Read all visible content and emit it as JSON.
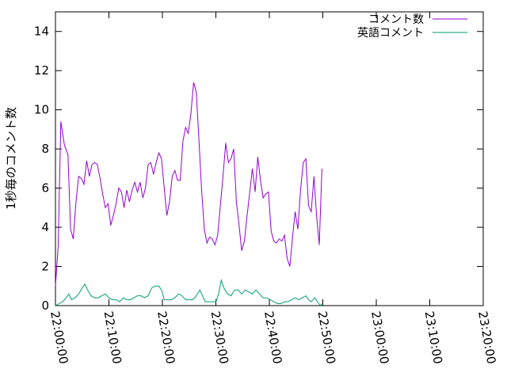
{
  "chart_data": {
    "type": "line",
    "title": "",
    "xlabel": "",
    "ylabel": "1秒毎のコメント数",
    "xlim": [
      "22:00:00",
      "23:20:00"
    ],
    "ylim": [
      0,
      15
    ],
    "grid": false,
    "legend": "top-right",
    "x_ticks": [
      "22:00:00",
      "22:10:00",
      "22:20:00",
      "22:30:00",
      "22:40:00",
      "22:50:00",
      "23:00:00",
      "23:10:00",
      "23:20:00"
    ],
    "y_ticks": [
      0,
      2,
      4,
      6,
      8,
      10,
      12,
      14
    ],
    "series": [
      {
        "name": "コメント数",
        "color": "#9400d3",
        "points": [
          [
            "22:00:00",
            1.0
          ],
          [
            "22:00:30",
            3.0
          ],
          [
            "22:01:00",
            9.4
          ],
          [
            "22:01:40",
            8.2
          ],
          [
            "22:02:20",
            7.7
          ],
          [
            "22:02:50",
            3.9
          ],
          [
            "22:03:20",
            3.4
          ],
          [
            "22:03:50",
            5.3
          ],
          [
            "22:04:20",
            6.6
          ],
          [
            "22:04:50",
            6.5
          ],
          [
            "22:05:20",
            6.2
          ],
          [
            "22:05:50",
            7.4
          ],
          [
            "22:06:20",
            6.6
          ],
          [
            "22:06:50",
            7.2
          ],
          [
            "22:07:20",
            7.3
          ],
          [
            "22:07:50",
            7.2
          ],
          [
            "22:08:20",
            6.5
          ],
          [
            "22:08:50",
            5.7
          ],
          [
            "22:09:20",
            5.0
          ],
          [
            "22:09:50",
            5.2
          ],
          [
            "22:10:20",
            4.1
          ],
          [
            "22:10:50",
            4.6
          ],
          [
            "22:11:20",
            5.2
          ],
          [
            "22:11:50",
            6.0
          ],
          [
            "22:12:20",
            5.8
          ],
          [
            "22:12:50",
            5.0
          ],
          [
            "22:13:20",
            5.9
          ],
          [
            "22:13:50",
            5.3
          ],
          [
            "22:14:20",
            5.9
          ],
          [
            "22:14:50",
            6.3
          ],
          [
            "22:15:20",
            5.8
          ],
          [
            "22:15:50",
            6.3
          ],
          [
            "22:16:20",
            5.5
          ],
          [
            "22:16:50",
            6.0
          ],
          [
            "22:17:20",
            7.2
          ],
          [
            "22:17:50",
            7.3
          ],
          [
            "22:18:20",
            6.7
          ],
          [
            "22:18:50",
            7.3
          ],
          [
            "22:19:20",
            7.8
          ],
          [
            "22:19:50",
            7.5
          ],
          [
            "22:20:20",
            6.0
          ],
          [
            "22:20:50",
            4.6
          ],
          [
            "22:21:20",
            5.3
          ],
          [
            "22:21:50",
            6.6
          ],
          [
            "22:22:20",
            6.9
          ],
          [
            "22:22:50",
            6.4
          ],
          [
            "22:23:20",
            6.4
          ],
          [
            "22:23:50",
            8.4
          ],
          [
            "22:24:20",
            9.1
          ],
          [
            "22:24:50",
            8.8
          ],
          [
            "22:25:20",
            9.8
          ],
          [
            "22:25:50",
            11.4
          ],
          [
            "22:26:20",
            10.9
          ],
          [
            "22:26:50",
            8.5
          ],
          [
            "22:27:20",
            5.9
          ],
          [
            "22:27:50",
            3.9
          ],
          [
            "22:28:20",
            3.2
          ],
          [
            "22:28:50",
            3.5
          ],
          [
            "22:29:20",
            3.4
          ],
          [
            "22:29:50",
            3.1
          ],
          [
            "22:30:20",
            3.6
          ],
          [
            "22:30:50",
            5.1
          ],
          [
            "22:31:20",
            6.6
          ],
          [
            "22:31:50",
            8.3
          ],
          [
            "22:32:20",
            7.3
          ],
          [
            "22:32:50",
            7.5
          ],
          [
            "22:33:20",
            8.0
          ],
          [
            "22:33:50",
            5.3
          ],
          [
            "22:34:20",
            4.1
          ],
          [
            "22:34:50",
            2.8
          ],
          [
            "22:35:20",
            3.3
          ],
          [
            "22:35:50",
            4.6
          ],
          [
            "22:36:20",
            5.8
          ],
          [
            "22:36:50",
            7.0
          ],
          [
            "22:37:20",
            5.8
          ],
          [
            "22:37:50",
            7.6
          ],
          [
            "22:38:20",
            6.4
          ],
          [
            "22:38:50",
            5.5
          ],
          [
            "22:39:20",
            5.7
          ],
          [
            "22:39:50",
            5.8
          ],
          [
            "22:40:20",
            3.8
          ],
          [
            "22:40:50",
            3.3
          ],
          [
            "22:41:20",
            3.2
          ],
          [
            "22:41:50",
            3.4
          ],
          [
            "22:42:20",
            3.3
          ],
          [
            "22:42:50",
            3.6
          ],
          [
            "22:43:20",
            2.4
          ],
          [
            "22:43:50",
            2.0
          ],
          [
            "22:44:20",
            3.5
          ],
          [
            "22:44:50",
            4.8
          ],
          [
            "22:45:20",
            3.9
          ],
          [
            "22:45:50",
            5.9
          ],
          [
            "22:46:20",
            7.3
          ],
          [
            "22:46:50",
            7.5
          ],
          [
            "22:47:20",
            5.1
          ],
          [
            "22:47:50",
            4.8
          ],
          [
            "22:48:20",
            6.6
          ],
          [
            "22:48:50",
            4.6
          ],
          [
            "22:49:20",
            3.1
          ],
          [
            "22:49:50",
            7.0
          ]
        ]
      },
      {
        "name": "英語コメント",
        "color": "#009e73",
        "points": [
          [
            "22:00:00",
            0.0
          ],
          [
            "22:00:40",
            0.1
          ],
          [
            "22:01:20",
            0.2
          ],
          [
            "22:02:00",
            0.4
          ],
          [
            "22:02:30",
            0.6
          ],
          [
            "22:03:00",
            0.3
          ],
          [
            "22:03:40",
            0.4
          ],
          [
            "22:04:20",
            0.6
          ],
          [
            "22:05:00",
            0.9
          ],
          [
            "22:05:30",
            1.1
          ],
          [
            "22:06:00",
            0.8
          ],
          [
            "22:06:40",
            0.5
          ],
          [
            "22:07:20",
            0.4
          ],
          [
            "22:08:00",
            0.4
          ],
          [
            "22:08:40",
            0.5
          ],
          [
            "22:09:20",
            0.6
          ],
          [
            "22:10:00",
            0.4
          ],
          [
            "22:10:40",
            0.3
          ],
          [
            "22:11:20",
            0.3
          ],
          [
            "22:12:00",
            0.2
          ],
          [
            "22:12:40",
            0.4
          ],
          [
            "22:13:20",
            0.3
          ],
          [
            "22:14:00",
            0.3
          ],
          [
            "22:14:40",
            0.4
          ],
          [
            "22:15:20",
            0.5
          ],
          [
            "22:16:00",
            0.5
          ],
          [
            "22:16:40",
            0.4
          ],
          [
            "22:17:20",
            0.5
          ],
          [
            "22:18:00",
            0.9
          ],
          [
            "22:18:40",
            1.0
          ],
          [
            "22:19:20",
            1.0
          ],
          [
            "22:19:50",
            0.8
          ],
          [
            "22:20:20",
            0.3
          ],
          [
            "22:21:00",
            0.3
          ],
          [
            "22:21:40",
            0.3
          ],
          [
            "22:22:20",
            0.4
          ],
          [
            "22:23:00",
            0.6
          ],
          [
            "22:23:40",
            0.5
          ],
          [
            "22:24:20",
            0.3
          ],
          [
            "22:25:00",
            0.3
          ],
          [
            "22:25:40",
            0.3
          ],
          [
            "22:26:20",
            0.5
          ],
          [
            "22:27:00",
            0.8
          ],
          [
            "22:27:30",
            0.5
          ],
          [
            "22:28:00",
            0.2
          ],
          [
            "22:28:40",
            0.2
          ],
          [
            "22:29:20",
            0.2
          ],
          [
            "22:30:00",
            0.2
          ],
          [
            "22:30:30",
            0.6
          ],
          [
            "22:31:00",
            1.3
          ],
          [
            "22:31:30",
            0.9
          ],
          [
            "22:32:10",
            0.6
          ],
          [
            "22:32:50",
            0.5
          ],
          [
            "22:33:30",
            0.8
          ],
          [
            "22:34:10",
            0.8
          ],
          [
            "22:34:50",
            0.6
          ],
          [
            "22:35:30",
            0.8
          ],
          [
            "22:36:10",
            0.7
          ],
          [
            "22:36:50",
            0.6
          ],
          [
            "22:37:30",
            0.8
          ],
          [
            "22:38:10",
            0.6
          ],
          [
            "22:38:50",
            0.4
          ],
          [
            "22:39:30",
            0.4
          ],
          [
            "22:40:10",
            0.3
          ],
          [
            "22:40:50",
            0.2
          ],
          [
            "22:41:30",
            0.1
          ],
          [
            "22:42:10",
            0.1
          ],
          [
            "22:42:50",
            0.2
          ],
          [
            "22:43:30",
            0.2
          ],
          [
            "22:44:10",
            0.3
          ],
          [
            "22:44:50",
            0.4
          ],
          [
            "22:45:30",
            0.3
          ],
          [
            "22:46:10",
            0.4
          ],
          [
            "22:46:50",
            0.5
          ],
          [
            "22:47:20",
            0.3
          ],
          [
            "22:47:50",
            0.2
          ],
          [
            "22:48:30",
            0.4
          ],
          [
            "22:49:00",
            0.2
          ],
          [
            "22:49:30",
            0.0
          ],
          [
            "22:49:50",
            0.1
          ]
        ]
      }
    ]
  }
}
